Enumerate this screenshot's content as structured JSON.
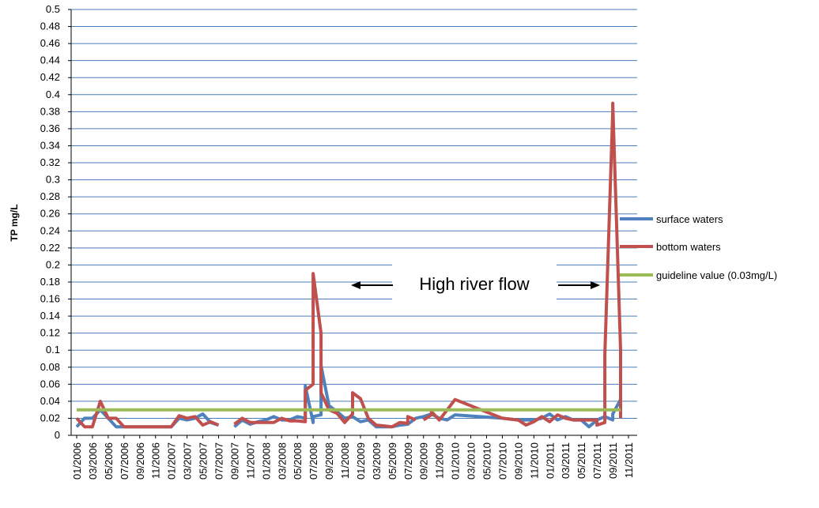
{
  "chart_data": {
    "type": "line",
    "title": "",
    "xlabel": "",
    "ylabel": "TP mg/L",
    "ylim": [
      0,
      0.5
    ],
    "ytick_step": 0.02,
    "grid": true,
    "legend_position": "right",
    "x_ticks": [
      "01/2006",
      "03/2006",
      "05/2006",
      "07/2006",
      "09/2006",
      "11/2006",
      "01/2007",
      "03/2007",
      "05/2007",
      "07/2007",
      "09/2007",
      "11/2007",
      "01/2008",
      "03/2008",
      "05/2008",
      "07/2008",
      "09/2008",
      "11/2008",
      "01/2009",
      "03/2009",
      "05/2009",
      "07/2009",
      "09/2009",
      "11/2009",
      "01/2010",
      "03/2010",
      "05/2010",
      "07/2010",
      "09/2010",
      "11/2010",
      "01/2011",
      "03/2011",
      "05/2011",
      "07/2011",
      "09/2011",
      "11/2011"
    ],
    "series": [
      {
        "name": "surface waters",
        "color": "#4F81BD",
        "segments": [
          [
            [
              "01/2006",
              0.01
            ],
            [
              "02/2006",
              0.02
            ],
            [
              "03/2006",
              0.02
            ],
            [
              "04/2006",
              0.03
            ],
            [
              "05/2006",
              0.02
            ],
            [
              "06/2006",
              0.01
            ],
            [
              "07/2006",
              0.01
            ],
            [
              "08/2006",
              0.01
            ],
            [
              "09/2006",
              0.01
            ],
            [
              "10/2006",
              0.01
            ],
            [
              "11/2006",
              0.01
            ],
            [
              "12/2006",
              0.01
            ],
            [
              "01/2007",
              0.01
            ],
            [
              "02/2007",
              0.02
            ],
            [
              "03/2007",
              0.018
            ],
            [
              "04/2007",
              0.02
            ],
            [
              "05/2007",
              0.025
            ],
            [
              "06/2007",
              0.015
            ],
            [
              "07/2007",
              0.012
            ]
          ],
          [
            [
              "09/2007",
              0.01
            ],
            [
              "10/2007",
              0.018
            ],
            [
              "11/2007",
              0.013
            ],
            [
              "12/2007",
              0.016
            ],
            [
              "01/2008",
              0.018
            ],
            [
              "02/2008",
              0.022
            ],
            [
              "03/2008",
              0.018
            ],
            [
              "04/2008",
              0.018
            ],
            [
              "05/2008",
              0.022
            ],
            [
              "06/2008",
              0.02
            ],
            [
              "06/2008",
              0.058
            ],
            [
              "07/2008",
              0.015
            ],
            [
              "07/2008",
              0.022
            ],
            [
              "08/2008",
              0.024
            ],
            [
              "08/2008",
              0.082
            ],
            [
              "09/2008",
              0.035
            ],
            [
              "10/2008",
              0.028
            ],
            [
              "11/2008",
              0.02
            ],
            [
              "12/2008",
              0.022
            ],
            [
              "01/2009",
              0.016
            ],
            [
              "02/2009",
              0.018
            ],
            [
              "03/2009",
              0.01
            ],
            [
              "04/2009",
              0.01
            ],
            [
              "05/2009",
              0.01
            ],
            [
              "06/2009",
              0.012
            ],
            [
              "07/2009",
              0.013
            ],
            [
              "08/2009",
              0.02
            ],
            [
              "09/2009",
              0.022
            ],
            [
              "10/2009",
              0.025
            ],
            [
              "11/2009",
              0.02
            ],
            [
              "12/2009",
              0.018
            ],
            [
              "01/2010",
              0.024
            ],
            [
              "07/2010",
              0.02
            ],
            [
              "09/2010",
              0.018
            ],
            [
              "10/2010",
              0.018
            ],
            [
              "11/2010",
              0.018
            ],
            [
              "12/2010",
              0.02
            ],
            [
              "01/2011",
              0.025
            ],
            [
              "02/2011",
              0.018
            ],
            [
              "03/2011",
              0.022
            ],
            [
              "04/2011",
              0.018
            ],
            [
              "05/2011",
              0.018
            ],
            [
              "06/2011",
              0.01
            ],
            [
              "07/2011",
              0.018
            ],
            [
              "08/2011",
              0.022
            ],
            [
              "09/2011",
              0.018
            ],
            [
              "09/2011",
              0.025
            ],
            [
              "10/2011",
              0.042
            ],
            [
              "10/2011",
              0.02
            ]
          ]
        ]
      },
      {
        "name": "bottom waters",
        "color": "#C0504D",
        "segments": [
          [
            [
              "01/2006",
              0.02
            ],
            [
              "02/2006",
              0.01
            ],
            [
              "03/2006",
              0.01
            ],
            [
              "04/2006",
              0.04
            ],
            [
              "05/2006",
              0.02
            ],
            [
              "06/2006",
              0.02
            ],
            [
              "07/2006",
              0.01
            ],
            [
              "08/2006",
              0.01
            ],
            [
              "09/2006",
              0.01
            ],
            [
              "10/2006",
              0.01
            ],
            [
              "11/2006",
              0.01
            ],
            [
              "12/2006",
              0.01
            ],
            [
              "01/2007",
              0.01
            ],
            [
              "02/2007",
              0.023
            ],
            [
              "03/2007",
              0.02
            ],
            [
              "04/2007",
              0.022
            ],
            [
              "05/2007",
              0.012
            ],
            [
              "06/2007",
              0.016
            ],
            [
              "07/2007",
              0.012
            ]
          ],
          [
            [
              "09/2007",
              0.013
            ],
            [
              "10/2007",
              0.02
            ],
            [
              "11/2007",
              0.015
            ],
            [
              "12/2007",
              0.015
            ],
            [
              "01/2008",
              0.015
            ],
            [
              "02/2008",
              0.015
            ],
            [
              "03/2008",
              0.02
            ],
            [
              "04/2008",
              0.017
            ],
            [
              "05/2008",
              0.017
            ],
            [
              "06/2008",
              0.016
            ],
            [
              "06/2008",
              0.053
            ],
            [
              "07/2008",
              0.06
            ],
            [
              "07/2008",
              0.19
            ],
            [
              "08/2008",
              0.12
            ],
            [
              "08/2008",
              0.05
            ],
            [
              "09/2008",
              0.03
            ],
            [
              "10/2008",
              0.026
            ],
            [
              "11/2008",
              0.015
            ],
            [
              "12/2008",
              0.025
            ],
            [
              "12/2008",
              0.05
            ],
            [
              "01/2009",
              0.043
            ],
            [
              "02/2009",
              0.02
            ],
            [
              "03/2009",
              0.012
            ],
            [
              "04/2009",
              0.011
            ],
            [
              "05/2009",
              0.01
            ],
            [
              "06/2009",
              0.015
            ],
            [
              "07/2009",
              0.014
            ],
            [
              "07/2009",
              0.022
            ],
            [
              "08/2009",
              0.018
            ]
          ],
          [
            [
              "09/2009",
              0.018
            ],
            [
              "10/2009",
              0.024
            ],
            [
              "10/2009",
              0.028
            ],
            [
              "11/2009",
              0.018
            ],
            [
              "12/2009",
              0.03
            ],
            [
              "01/2010",
              0.042
            ],
            [
              "07/2010",
              0.02
            ],
            [
              "09/2010",
              0.018
            ],
            [
              "10/2010",
              0.012
            ],
            [
              "11/2010",
              0.016
            ],
            [
              "12/2010",
              0.022
            ],
            [
              "01/2011",
              0.016
            ],
            [
              "02/2011",
              0.024
            ],
            [
              "03/2011",
              0.02
            ],
            [
              "04/2011",
              0.018
            ],
            [
              "05/2011",
              0.018
            ],
            [
              "06/2011",
              0.018
            ],
            [
              "07/2011",
              0.018
            ],
            [
              "07/2011",
              0.012
            ],
            [
              "08/2011",
              0.015
            ],
            [
              "08/2011",
              0.095
            ],
            [
              "09/2011",
              0.38
            ],
            [
              "09/2011",
              0.39
            ],
            [
              "10/2011",
              0.1
            ],
            [
              "10/2011",
              0.02
            ]
          ]
        ]
      },
      {
        "name": "guideline value (0.03mg/L)",
        "color": "#9BBB59",
        "segments": [
          [
            [
              "01/2006",
              0.03
            ],
            [
              "10/2011",
              0.03
            ]
          ]
        ]
      }
    ],
    "annotation": {
      "text": "High river flow"
    }
  }
}
